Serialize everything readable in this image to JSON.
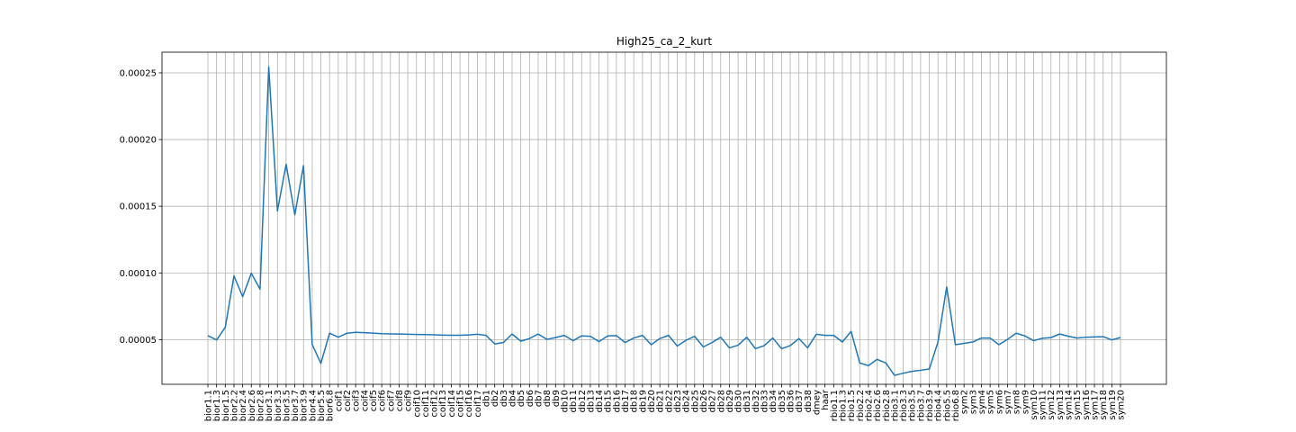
{
  "chart_data": {
    "type": "line",
    "title": "High25_ca_2_kurt",
    "xlabel": "",
    "ylabel": "",
    "grid": true,
    "ylim": [
      1.65e-05,
      0.0002655
    ],
    "yticks": [
      "0.00005",
      "0.00010",
      "0.00015",
      "0.00020",
      "0.00025"
    ],
    "ytick_values": [
      5e-05,
      0.0001,
      0.00015,
      0.0002,
      0.00025
    ],
    "x": [
      "bior1.1",
      "bior1.3",
      "bior1.5",
      "bior2.2",
      "bior2.4",
      "bior2.6",
      "bior2.8",
      "bior3.1",
      "bior3.3",
      "bior3.5",
      "bior3.7",
      "bior3.9",
      "bior4.4",
      "bior5.5",
      "bior6.8",
      "coif1",
      "coif2",
      "coif3",
      "coif4",
      "coif5",
      "coif6",
      "coif7",
      "coif8",
      "coif9",
      "coif10",
      "coif11",
      "coif12",
      "coif13",
      "coif14",
      "coif15",
      "coif16",
      "coif17",
      "db1",
      "db2",
      "db3",
      "db4",
      "db5",
      "db6",
      "db7",
      "db8",
      "db9",
      "db10",
      "db11",
      "db12",
      "db13",
      "db14",
      "db15",
      "db16",
      "db17",
      "db18",
      "db19",
      "db20",
      "db21",
      "db22",
      "db23",
      "db24",
      "db25",
      "db26",
      "db27",
      "db28",
      "db29",
      "db30",
      "db31",
      "db32",
      "db33",
      "db34",
      "db35",
      "db36",
      "db37",
      "db38",
      "dmey",
      "haar",
      "rbio1.1",
      "rbio1.3",
      "rbio1.5",
      "rbio2.2",
      "rbio2.4",
      "rbio2.6",
      "rbio2.8",
      "rbio3.1",
      "rbio3.3",
      "rbio3.5",
      "rbio3.7",
      "rbio3.9",
      "rbio4.4",
      "rbio5.5",
      "rbio6.8",
      "sym2",
      "sym3",
      "sym4",
      "sym5",
      "sym6",
      "sym7",
      "sym8",
      "sym9",
      "sym10",
      "sym11",
      "sym12",
      "sym13",
      "sym14",
      "sym15",
      "sym16",
      "sym17",
      "sym18",
      "sym19",
      "sym20"
    ],
    "series": [
      {
        "color": "#1f77b4",
        "values": [
          5.3e-05,
          4.98e-05,
          5.92e-05,
          9.78e-05,
          8.22e-05,
          9.98e-05,
          8.78e-05,
          0.0002545,
          0.0001465,
          0.0001815,
          0.0001435,
          0.0001805,
          4.62e-05,
          3.22e-05,
          5.48e-05,
          5.18e-05,
          5.48e-05,
          5.55e-05,
          5.52e-05,
          5.49e-05,
          5.45e-05,
          5.43e-05,
          5.42e-05,
          5.4e-05,
          5.39e-05,
          5.38e-05,
          5.36e-05,
          5.34e-05,
          5.33e-05,
          5.33e-05,
          5.35e-05,
          5.4e-05,
          5.32e-05,
          4.68e-05,
          4.78e-05,
          5.42e-05,
          4.88e-05,
          5.08e-05,
          5.42e-05,
          5.02e-05,
          5.15e-05,
          5.32e-05,
          4.92e-05,
          5.28e-05,
          5.25e-05,
          4.85e-05,
          5.28e-05,
          5.3e-05,
          4.78e-05,
          5.12e-05,
          5.32e-05,
          4.62e-05,
          5.08e-05,
          5.32e-05,
          4.52e-05,
          4.95e-05,
          5.25e-05,
          4.45e-05,
          4.78e-05,
          5.18e-05,
          4.38e-05,
          4.58e-05,
          5.18e-05,
          4.32e-05,
          4.55e-05,
          5.12e-05,
          4.32e-05,
          4.55e-05,
          5.08e-05,
          4.38e-05,
          5.4e-05,
          5.32e-05,
          5.32e-05,
          4.82e-05,
          5.62e-05,
          3.25e-05,
          3.05e-05,
          3.52e-05,
          3.25e-05,
          2.32e-05,
          2.48e-05,
          2.62e-05,
          2.7e-05,
          2.8e-05,
          4.82e-05,
          8.95e-05,
          4.62e-05,
          4.72e-05,
          4.82e-05,
          5.12e-05,
          5.12e-05,
          4.62e-05,
          5.02e-05,
          5.48e-05,
          5.28e-05,
          4.92e-05,
          5.1e-05,
          5.15e-05,
          5.42e-05,
          5.25e-05,
          5.12e-05,
          5.18e-05,
          5.2e-05,
          5.22e-05,
          4.98e-05,
          5.15e-05
        ]
      }
    ]
  }
}
